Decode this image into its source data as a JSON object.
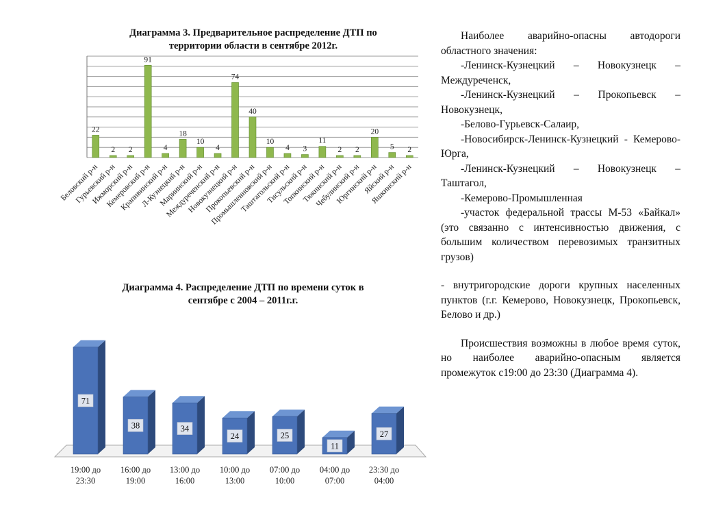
{
  "chart_data": [
    {
      "type": "bar",
      "title": "Диаграмма 3. Предварительное распределение ДТП по территории области в сентябре 2012г.",
      "title_lines": [
        "Диаграмма 3. Предварительное распределение ДТП по",
        "территории области в сентябре 2012г."
      ],
      "categories": [
        "Беловский р-н",
        "Гурьевский р-н",
        "Ижморский р-н",
        "Кемеровский р-н",
        "Крапивинский р-н",
        "Л-Кузнецкий р-н",
        "Мариинский р-н",
        "Междуреченский р-н",
        "Новокузнецкий р-н",
        "Прокопьевский р-н",
        "Промышленновский р-н",
        "Таштагольский р-н",
        "Тисульский р-н",
        "Топкинский р-н",
        "Тяжинский р-н",
        "Чебулинский р-н",
        "Юргинский р-н",
        "Яйский р-н",
        "Яшкинский р-н"
      ],
      "values": [
        22,
        2,
        2,
        91,
        4,
        18,
        10,
        4,
        74,
        40,
        10,
        4,
        3,
        11,
        2,
        2,
        20,
        5,
        2
      ],
      "ylim": [
        0,
        100
      ],
      "grid": true,
      "colors": {
        "bar": "#8fb84e",
        "bar_edge": "#5d8a2a"
      }
    },
    {
      "type": "bar",
      "title": "Диаграмма 4. Распределение ДТП по времени суток в сентябре с 2004 – 2011г.г.",
      "title_lines": [
        "Диаграмма 4. Распределение ДТП по времени суток в",
        "сентябре с 2004 – 2011г.г."
      ],
      "categories": [
        "19:00 до 23:30",
        "16:00 до 19:00",
        "13:00 до 16:00",
        "10:00 до 13:00",
        "07:00 до 10:00",
        "04:00 до 07:00",
        "23:30 до 04:00"
      ],
      "category_lines": [
        [
          "19:00 до",
          "23:30"
        ],
        [
          "16:00 до",
          "19:00"
        ],
        [
          "13:00 до",
          "16:00"
        ],
        [
          "10:00 до",
          "13:00"
        ],
        [
          "07:00 до",
          "10:00"
        ],
        [
          "04:00 до",
          "07:00"
        ],
        [
          "23:30 до",
          "04:00"
        ]
      ],
      "values": [
        71,
        38,
        34,
        24,
        25,
        11,
        27
      ],
      "style": "3d-column",
      "colors": {
        "front": "#4a72b8",
        "side": "#2d4a7c",
        "top": "#6e95d2",
        "label_bg": "#dfe4ee"
      }
    }
  ],
  "text": {
    "paragraphs": [
      "Наиболее аварийно-опасны автодороги областного значения:",
      "-Ленинск-Кузнецкий – Новокузнецк – Междуреченск,",
      "-Ленинск-Кузнецкий – Прокопьевск – Новокузнецк,",
      "-Белово-Гурьевск-Салаир,",
      " -Новосибирск-Ленинск-Кузнецкий - Кемерово-Юрга,",
      "-Ленинск-Кузнецкий – Новокузнецк – Таштагол,",
      "-Кемерово-Промышленная",
      "-участок федеральной трассы М-53 «Байкал» (это связанно с интенсивностью движения, с большим количеством перевозимых транзитных грузов)",
      "- внутригородские дороги крупных населенных пунктов (г.г. Кемерово, Новокузнецк, Прокопьевск, Белово и др.)",
      "Происшествия возможны в любое время суток, но наиболее аварийно-опасным является  промежуток с19:00 до 23:30 (Диаграмма 4)."
    ]
  }
}
